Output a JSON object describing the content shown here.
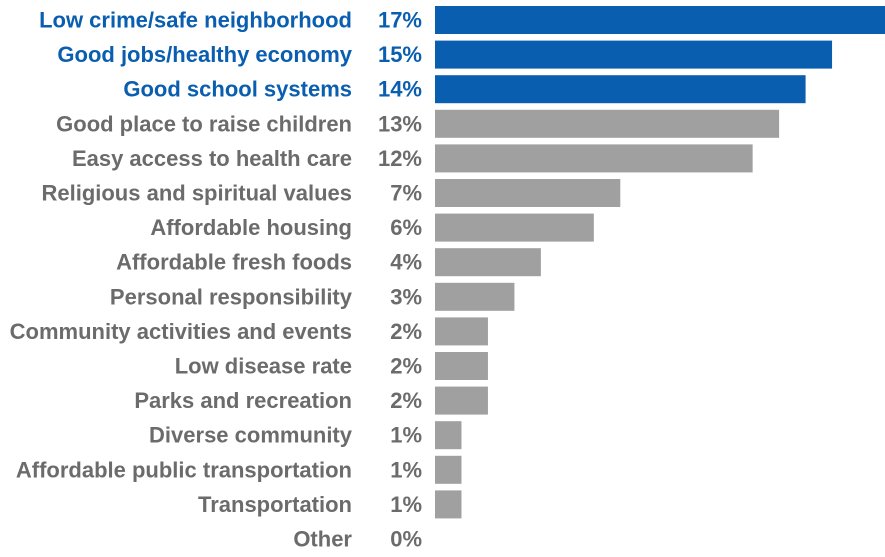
{
  "chart_data": {
    "type": "bar",
    "orientation": "horizontal",
    "categories": [
      "Low crime/safe neighborhood",
      "Good jobs/healthy economy",
      "Good school systems",
      "Good place to raise children",
      "Easy access to health care",
      "Religious and spiritual values",
      "Affordable housing",
      "Affordable fresh foods",
      "Personal responsibility",
      "Community activities and events",
      "Low disease rate",
      "Parks and recreation",
      "Diverse community",
      "Affordable public transportation",
      "Transportation",
      "Other"
    ],
    "values": [
      17,
      15,
      14,
      13,
      12,
      7,
      6,
      4,
      3,
      2,
      2,
      2,
      1,
      1,
      1,
      0
    ],
    "value_labels": [
      "17%",
      "15%",
      "14%",
      "13%",
      "12%",
      "7%",
      "6%",
      "4%",
      "3%",
      "2%",
      "2%",
      "2%",
      "1%",
      "1%",
      "1%",
      "0%"
    ],
    "highlighted": [
      true,
      true,
      true,
      false,
      false,
      false,
      false,
      false,
      false,
      false,
      false,
      false,
      false,
      false,
      false,
      false
    ],
    "title": "",
    "xlabel": "",
    "ylabel": "",
    "xlim": [
      0,
      17
    ],
    "grid": false,
    "legend": "none",
    "colors": {
      "highlight_bar": "#0a5eb0",
      "normal_bar": "#a0a0a0",
      "highlight_text": "#0a5eb0",
      "normal_text": "#6b6b6b"
    }
  }
}
